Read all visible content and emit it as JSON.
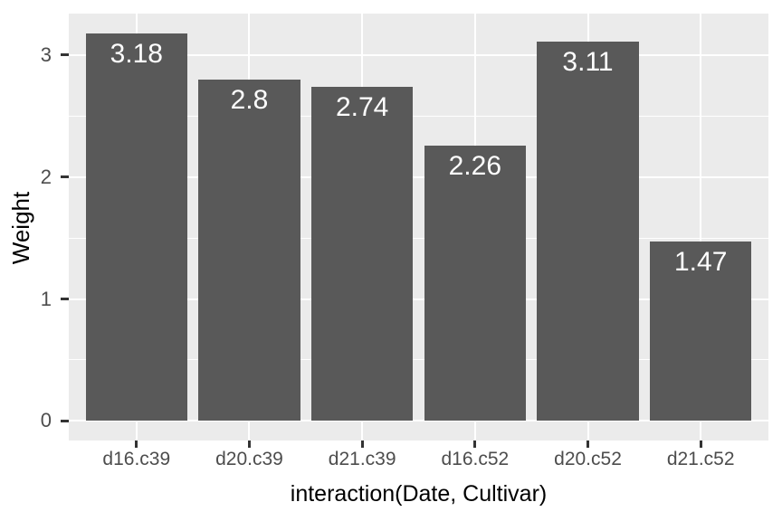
{
  "chart_data": {
    "type": "bar",
    "title": "",
    "categories": [
      "d16.c39",
      "d20.c39",
      "d21.c39",
      "d16.c52",
      "d20.c52",
      "d21.c52"
    ],
    "values": [
      3.18,
      2.8,
      2.74,
      2.26,
      3.11,
      1.47
    ],
    "bar_labels": [
      "3.18",
      "2.8",
      "2.74",
      "2.26",
      "3.11",
      "1.47"
    ],
    "xlabel": "interaction(Date, Cultivar)",
    "ylabel": "Weight",
    "yticks": [
      0,
      1,
      2,
      3
    ],
    "ytick_labels": [
      "0",
      "1",
      "2",
      "3"
    ],
    "yminor": [
      0.5,
      1.5,
      2.5
    ],
    "ylim": [
      -0.16,
      3.34
    ],
    "bar_width_fraction": 0.9,
    "grid": true,
    "legend": false,
    "style": "ggplot2-theme-grey"
  },
  "colors": {
    "figure_background": "#FFFFFF",
    "panel_background": "#EBEBEB",
    "bar_fill": "#595959",
    "gridline": "#FFFFFF",
    "tick_mark": "#333333",
    "tick_label": "#4D4D4D",
    "axis_title": "#000000",
    "value_label": "#FFFFFF"
  }
}
